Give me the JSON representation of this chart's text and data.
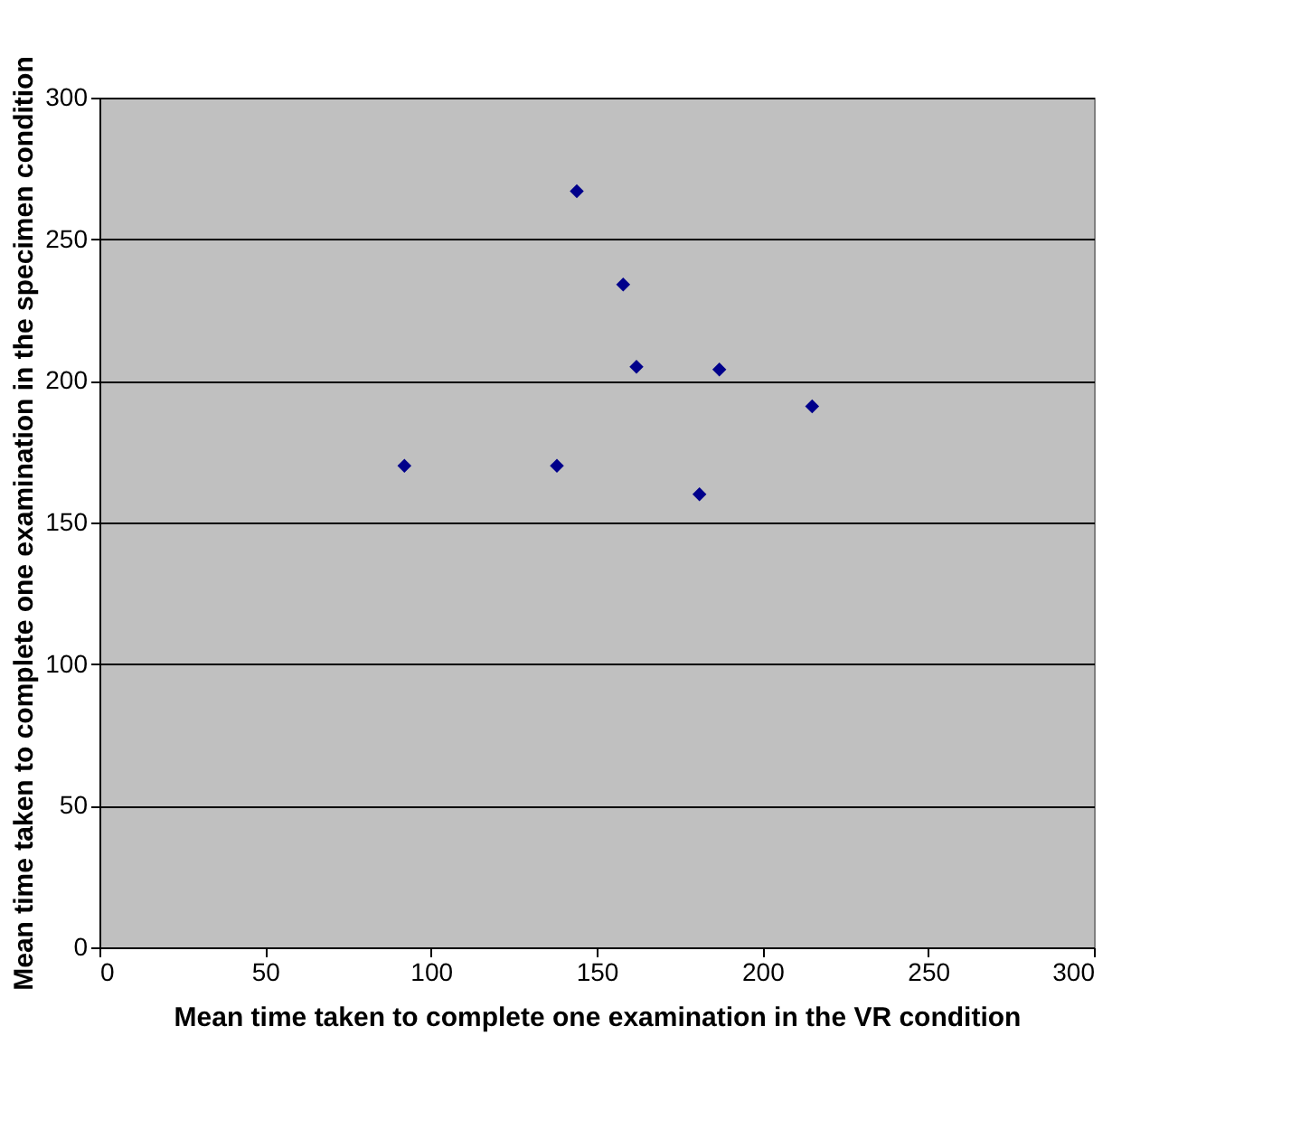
{
  "chart_data": {
    "type": "scatter",
    "xlabel": "Mean time taken to complete one examination in the VR condition",
    "ylabel": "Mean time taken to complete one examination in the specimen condition",
    "x": [
      92,
      138,
      144,
      158,
      162,
      181,
      187,
      215
    ],
    "series": [
      {
        "color": "#00008b",
        "values": [
          170,
          170,
          267,
          234,
          205,
          160,
          204,
          191
        ]
      }
    ],
    "xlim": [
      0,
      300
    ],
    "xticks": [
      0,
      50,
      100,
      150,
      200,
      250,
      300
    ],
    "ylim": [
      0,
      300
    ],
    "yticks": [
      0,
      50,
      100,
      150,
      200,
      250,
      300
    ],
    "grid": "y",
    "marker": "diamond"
  }
}
